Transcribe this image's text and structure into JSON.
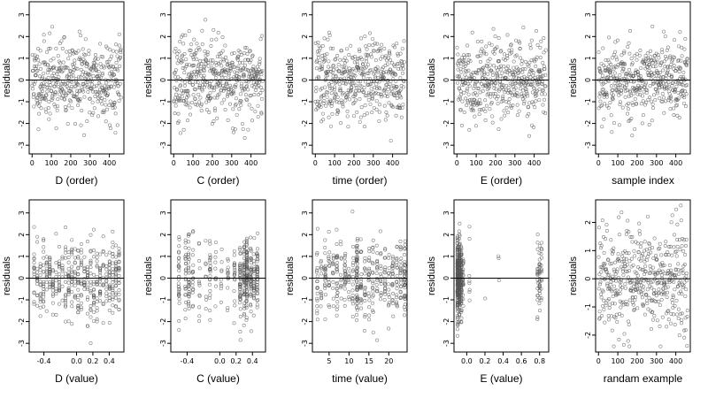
{
  "chart_data": [
    {
      "id": "p1",
      "type": "scatter",
      "xlabel": "D (order)",
      "ylabel": "residuals",
      "xlim": [
        -15,
        475
      ],
      "ylim": [
        -3.4,
        3.6
      ],
      "xticks": [
        0,
        100,
        200,
        300,
        400
      ],
      "xtick_labels": [
        "0",
        "100",
        "200",
        "300",
        "400"
      ],
      "yticks": [
        -3,
        -2,
        -1,
        0,
        1,
        2,
        3
      ],
      "ytick_labels": [
        "-3",
        "-2",
        "-1",
        "0",
        "1",
        "2",
        "3"
      ],
      "reference_line_y": 0,
      "point_spec": {
        "mode": "index",
        "n": 460,
        "sd": 0.9,
        "min": -3.2,
        "max": 3.4,
        "seed": 11
      }
    },
    {
      "id": "p2",
      "type": "scatter",
      "xlabel": "C (order)",
      "ylabel": "residuals",
      "xlim": [
        -15,
        475
      ],
      "ylim": [
        -3.4,
        3.6
      ],
      "xticks": [
        0,
        100,
        200,
        300,
        400
      ],
      "xtick_labels": [
        "0",
        "100",
        "200",
        "300",
        "400"
      ],
      "yticks": [
        -3,
        -2,
        -1,
        0,
        1,
        2,
        3
      ],
      "ytick_labels": [
        "-3",
        "-2",
        "-1",
        "0",
        "1",
        "2",
        "3"
      ],
      "reference_line_y": 0,
      "point_spec": {
        "mode": "index",
        "n": 460,
        "sd": 0.9,
        "min": -3.2,
        "max": 3.4,
        "seed": 23
      }
    },
    {
      "id": "p3",
      "type": "scatter",
      "xlabel": "time (order)",
      "ylabel": "residuals",
      "xlim": [
        -15,
        475
      ],
      "ylim": [
        -3.4,
        3.6
      ],
      "xticks": [
        0,
        100,
        200,
        300,
        400
      ],
      "xtick_labels": [
        "0",
        "100",
        "200",
        "300",
        "400"
      ],
      "yticks": [
        -3,
        -2,
        -1,
        0,
        1,
        2,
        3
      ],
      "ytick_labels": [
        "-3",
        "-2",
        "-1",
        "0",
        "1",
        "2",
        "3"
      ],
      "reference_line_y": 0,
      "point_spec": {
        "mode": "index",
        "n": 460,
        "sd": 0.9,
        "min": -3.2,
        "max": 3.4,
        "seed": 37
      }
    },
    {
      "id": "p4",
      "type": "scatter",
      "xlabel": "E (order)",
      "ylabel": "residuals",
      "xlim": [
        -15,
        475
      ],
      "ylim": [
        -3.4,
        3.6
      ],
      "xticks": [
        0,
        100,
        200,
        300,
        400
      ],
      "xtick_labels": [
        "0",
        "100",
        "200",
        "300",
        "400"
      ],
      "yticks": [
        -3,
        -2,
        -1,
        0,
        1,
        2,
        3
      ],
      "ytick_labels": [
        "-3",
        "-2",
        "-1",
        "0",
        "1",
        "2",
        "3"
      ],
      "reference_line_y": 0,
      "point_spec": {
        "mode": "index",
        "n": 460,
        "sd": 0.9,
        "min": -3.2,
        "max": 3.4,
        "seed": 41
      }
    },
    {
      "id": "p5",
      "type": "scatter",
      "xlabel": "sample index",
      "ylabel": "residuals",
      "xlim": [
        -15,
        475
      ],
      "ylim": [
        -3.4,
        3.6
      ],
      "xticks": [
        0,
        100,
        200,
        300,
        400
      ],
      "xtick_labels": [
        "0",
        "100",
        "200",
        "300",
        "400"
      ],
      "yticks": [
        -3,
        -2,
        -1,
        0,
        1,
        2,
        3
      ],
      "ytick_labels": [
        "-3",
        "-2",
        "-1",
        "0",
        "1",
        "2",
        "3"
      ],
      "reference_line_y": 0,
      "point_spec": {
        "mode": "index",
        "n": 460,
        "sd": 0.9,
        "min": -3.2,
        "max": 3.4,
        "seed": 53
      }
    },
    {
      "id": "p6",
      "type": "scatter",
      "xlabel": "D (value)",
      "ylabel": "residuals",
      "xlim": [
        -0.58,
        0.58
      ],
      "ylim": [
        -3.4,
        3.6
      ],
      "xticks": [
        -0.4,
        0.0,
        0.2,
        0.4
      ],
      "xtick_labels": [
        "-0.4",
        "0.0",
        "0.2",
        "0.4"
      ],
      "yticks": [
        -3,
        -2,
        -1,
        0,
        1,
        2,
        3
      ],
      "ytick_labels": [
        "-3",
        "-2",
        "-1",
        "0",
        "1",
        "2",
        "3"
      ],
      "reference_line_y": 0,
      "point_spec": {
        "mode": "uniform",
        "n": 460,
        "xmin": -0.52,
        "xmax": 0.52,
        "levels": 28,
        "sd": 0.9,
        "min": -3.0,
        "max": 3.4,
        "seed": 61
      }
    },
    {
      "id": "p7",
      "type": "scatter",
      "xlabel": "C (value)",
      "ylabel": "residuals",
      "xlim": [
        -0.6,
        0.56
      ],
      "ylim": [
        -3.4,
        3.6
      ],
      "xticks": [
        -0.4,
        0.0,
        0.2,
        0.4
      ],
      "xtick_labels": [
        "-0.4",
        "0.0",
        "0.2",
        "0.4"
      ],
      "yticks": [
        -3,
        -2,
        -1,
        0,
        1,
        2,
        3
      ],
      "ytick_labels": [
        "-3",
        "-2",
        "-1",
        "0",
        "1",
        "2",
        "3"
      ],
      "reference_line_y": 0,
      "point_spec": {
        "mode": "levels",
        "n": 460,
        "values": [
          -0.5,
          -0.42,
          -0.38,
          -0.33,
          -0.25,
          -0.17,
          -0.12,
          -0.05,
          0.02,
          0.1,
          0.18,
          0.25,
          0.3,
          0.33,
          0.38,
          0.42,
          0.46
        ],
        "weights": [
          3,
          2,
          4,
          2,
          1,
          1,
          2,
          1,
          1,
          1,
          2,
          4,
          4,
          5,
          4,
          3,
          3
        ],
        "jitter": 0.005,
        "sd": 0.9,
        "min": -3.2,
        "max": 3.4,
        "seed": 71
      }
    },
    {
      "id": "p8",
      "type": "scatter",
      "xlabel": "time (value)",
      "ylabel": "residuals",
      "xlim": [
        0.8,
        24.6
      ],
      "ylim": [
        -3.4,
        3.6
      ],
      "xticks": [
        5,
        10,
        15,
        20
      ],
      "xtick_labels": [
        "5",
        "10",
        "15",
        "20"
      ],
      "yticks": [
        -3,
        -2,
        -1,
        0,
        1,
        2,
        3
      ],
      "ytick_labels": [
        "-3",
        "-2",
        "-1",
        "0",
        "1",
        "2",
        "3"
      ],
      "reference_line_y": 0,
      "point_spec": {
        "mode": "levels",
        "n": 460,
        "values": [
          2,
          3,
          4,
          5,
          6,
          7,
          8,
          9,
          10,
          11,
          12,
          13,
          14,
          15,
          16,
          17,
          18,
          19,
          20,
          21,
          22,
          23,
          24
        ],
        "weights": [
          2,
          2,
          2,
          2,
          2,
          3,
          2,
          3,
          2,
          2,
          6,
          2,
          2,
          2,
          2,
          2,
          2,
          2,
          2,
          2,
          2,
          3,
          4
        ],
        "jitter": 0.12,
        "sd": 0.9,
        "min": -3.2,
        "max": 3.4,
        "seed": 83
      }
    },
    {
      "id": "p9",
      "type": "scatter",
      "xlabel": "E (value)",
      "ylabel": "residuals",
      "xlim": [
        -0.14,
        0.9
      ],
      "ylim": [
        -3.4,
        3.6
      ],
      "xticks": [
        0.0,
        0.2,
        0.4,
        0.6,
        0.8
      ],
      "xtick_labels": [
        "0.0",
        "0.2",
        "0.4",
        "0.6",
        "0.8"
      ],
      "yticks": [
        -3,
        -2,
        -1,
        0,
        1,
        2,
        3
      ],
      "ytick_labels": [
        "-3",
        "-2",
        "-1",
        "0",
        "1",
        "2",
        "3"
      ],
      "reference_line_y": 0,
      "point_spec": {
        "mode": "levels",
        "n": 460,
        "values": [
          -0.1,
          -0.08,
          -0.06,
          -0.04,
          0.03,
          0.2,
          0.35,
          0.78,
          0.8,
          0.82
        ],
        "weights": [
          40,
          30,
          14,
          4,
          1,
          0.4,
          0.3,
          3,
          4,
          3
        ],
        "jitter": 0.004,
        "sd": 0.9,
        "min": -3.2,
        "max": 3.4,
        "seed": 97
      }
    },
    {
      "id": "p10",
      "type": "scatter",
      "xlabel": "randam example",
      "ylabel": "residuals",
      "xlim": [
        -15,
        475
      ],
      "ylim": [
        -2.6,
        2.8
      ],
      "xticks": [
        0,
        100,
        200,
        300,
        400
      ],
      "xtick_labels": [
        "0",
        "100",
        "200",
        "300",
        "400"
      ],
      "yticks": [
        -2,
        -1,
        0,
        1,
        2
      ],
      "ytick_labels": [
        "-2",
        "-1",
        "0",
        "1",
        "2"
      ],
      "reference_line_y": 0,
      "point_spec": {
        "mode": "index",
        "n": 460,
        "sd": 0.95,
        "min": -2.4,
        "max": 2.6,
        "seed": 109
      }
    }
  ]
}
